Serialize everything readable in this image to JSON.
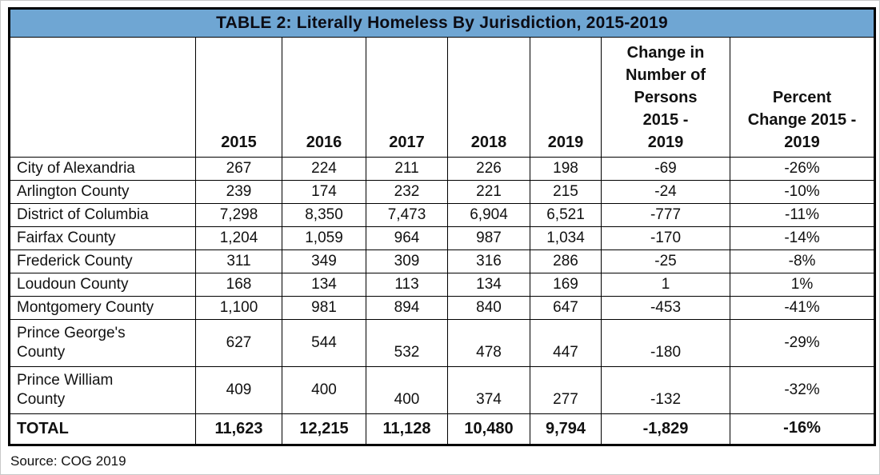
{
  "title": "TABLE 2: Literally Homeless By Jurisdiction, 2015-2019",
  "source": "Source: COG 2019",
  "colors": {
    "title_bar_bg": "#6FA6D3",
    "border": "#000000",
    "text": "#111111",
    "background": "#FFFFFF"
  },
  "table": {
    "columns": [
      "",
      "2015",
      "2016",
      "2017",
      "2018",
      "2019",
      "Change in\nNumber of\nPersons\n2015 -\n2019",
      "Percent\nChange 2015 -\n2019"
    ],
    "rows": [
      {
        "label": "City of Alexandria",
        "values": [
          "267",
          "224",
          "211",
          "226",
          "198",
          "-69",
          "-26%"
        ]
      },
      {
        "label": "Arlington County",
        "values": [
          "239",
          "174",
          "232",
          "221",
          "215",
          "-24",
          "-10%"
        ]
      },
      {
        "label": "District of Columbia",
        "values": [
          "7,298",
          "8,350",
          "7,473",
          "6,904",
          "6,521",
          "-777",
          "-11%"
        ]
      },
      {
        "label": "Fairfax County",
        "values": [
          "1,204",
          "1,059",
          "964",
          "987",
          "1,034",
          "-170",
          "-14%"
        ]
      },
      {
        "label": "Frederick County",
        "values": [
          "311",
          "349",
          "309",
          "316",
          "286",
          "-25",
          "-8%"
        ]
      },
      {
        "label": "Loudoun County",
        "values": [
          "168",
          "134",
          "113",
          "134",
          "169",
          "1",
          "1%"
        ]
      },
      {
        "label": "Montgomery County",
        "values": [
          "1,100",
          "981",
          "894",
          "840",
          "647",
          "-453",
          "-41%"
        ]
      },
      {
        "label": "Prince George's\nCounty",
        "values": [
          "627",
          "544",
          "532",
          "478",
          "447",
          "-180",
          "-29%"
        ]
      },
      {
        "label": "Prince William\nCounty",
        "values": [
          "409",
          "400",
          "400",
          "374",
          "277",
          "-132",
          "-32%"
        ]
      },
      {
        "label": "TOTAL",
        "values": [
          "11,623",
          "12,215",
          "11,128",
          "10,480",
          "9,794",
          "-1,829",
          "-16%"
        ],
        "bold": true
      }
    ]
  }
}
